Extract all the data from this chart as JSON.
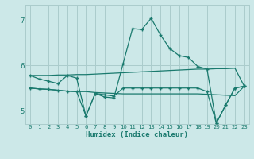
{
  "xlabel": "Humidex (Indice chaleur)",
  "bg_color": "#cce8e8",
  "grid_color": "#aacccc",
  "line_color": "#1a7a6e",
  "xlim": [
    -0.5,
    23.5
  ],
  "ylim": [
    4.7,
    7.35
  ],
  "yticks": [
    5,
    6,
    7
  ],
  "xticks": [
    0,
    1,
    2,
    3,
    4,
    5,
    6,
    7,
    8,
    9,
    10,
    11,
    12,
    13,
    14,
    15,
    16,
    17,
    18,
    19,
    20,
    21,
    22,
    23
  ],
  "series": [
    {
      "x": [
        0,
        1,
        2,
        3,
        4,
        5,
        6,
        7,
        8,
        9,
        10,
        11,
        12,
        13,
        14,
        15,
        16,
        17,
        18,
        19,
        20,
        21,
        22,
        23
      ],
      "y": [
        5.78,
        5.78,
        5.78,
        5.79,
        5.79,
        5.8,
        5.8,
        5.81,
        5.82,
        5.83,
        5.84,
        5.85,
        5.86,
        5.87,
        5.88,
        5.89,
        5.9,
        5.91,
        5.92,
        5.92,
        5.93,
        5.93,
        5.94,
        5.54
      ],
      "marker": null,
      "linewidth": 0.9
    },
    {
      "x": [
        0,
        1,
        2,
        3,
        4,
        5,
        6,
        7,
        8,
        9,
        10,
        11,
        12,
        13,
        14,
        15,
        16,
        17,
        18,
        19,
        20,
        21,
        22,
        23
      ],
      "y": [
        5.5,
        5.48,
        5.47,
        5.45,
        5.43,
        5.42,
        5.42,
        5.4,
        5.39,
        5.38,
        5.37,
        5.37,
        5.37,
        5.37,
        5.37,
        5.37,
        5.37,
        5.37,
        5.37,
        5.36,
        5.35,
        5.34,
        5.33,
        5.54
      ],
      "marker": null,
      "linewidth": 0.9
    },
    {
      "x": [
        0,
        1,
        2,
        3,
        4,
        5,
        6,
        7,
        8,
        9,
        10,
        11,
        12,
        13,
        14,
        15,
        16,
        17,
        18,
        19,
        20,
        21,
        22,
        23
      ],
      "y": [
        5.78,
        5.7,
        5.65,
        5.6,
        5.78,
        5.72,
        4.88,
        5.38,
        5.3,
        5.28,
        6.05,
        6.82,
        6.8,
        7.05,
        6.68,
        6.38,
        6.22,
        6.18,
        5.98,
        5.92,
        4.72,
        5.12,
        5.5,
        5.54
      ],
      "marker": "+",
      "markersize": 3.5,
      "linewidth": 0.9
    },
    {
      "x": [
        0,
        1,
        2,
        3,
        4,
        5,
        6,
        7,
        8,
        9,
        10,
        11,
        12,
        13,
        14,
        15,
        16,
        17,
        18,
        19,
        20,
        21,
        22,
        23
      ],
      "y": [
        5.5,
        5.48,
        5.47,
        5.45,
        5.43,
        5.42,
        4.88,
        5.38,
        5.35,
        5.32,
        5.5,
        5.5,
        5.5,
        5.5,
        5.5,
        5.5,
        5.5,
        5.5,
        5.5,
        5.42,
        4.72,
        5.12,
        5.5,
        5.54
      ],
      "marker": "+",
      "markersize": 3.5,
      "linewidth": 0.9
    }
  ]
}
